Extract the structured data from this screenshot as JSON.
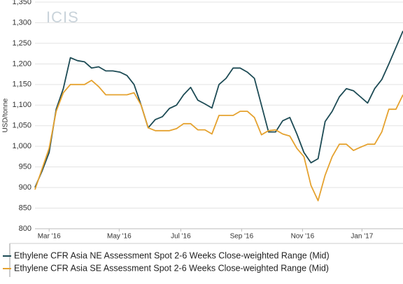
{
  "chart_data": {
    "type": "line",
    "watermark": "ICIS",
    "y_label": "USD/tonne",
    "x": [
      0,
      1,
      2,
      3,
      4,
      5,
      6,
      7,
      8,
      9,
      10,
      11,
      12,
      13,
      14,
      15,
      16,
      17,
      18,
      19,
      20,
      21,
      22,
      23,
      24,
      25,
      26,
      27,
      28,
      29,
      30,
      31,
      32,
      33,
      34,
      35,
      36,
      37,
      38,
      39,
      40,
      41,
      42,
      43,
      44,
      45,
      46,
      47,
      48,
      49,
      50,
      51,
      52
    ],
    "xlim": [
      0,
      52
    ],
    "xticks": [
      {
        "value": 2,
        "label": "Mar '16"
      },
      {
        "value": 11.9,
        "label": "May '16"
      },
      {
        "value": 20.6,
        "label": "Jul '16"
      },
      {
        "value": 29.2,
        "label": "Sep '16"
      },
      {
        "value": 37.8,
        "label": "Nov '16"
      },
      {
        "value": 46.2,
        "label": "Jan '17"
      }
    ],
    "ylim": [
      800,
      1350
    ],
    "yticks": [
      800,
      850,
      900,
      950,
      {
        "value": 1000,
        "label": "1,000"
      },
      {
        "value": 1050,
        "label": "1,050"
      },
      {
        "value": 1100,
        "label": "1,100"
      },
      {
        "value": 1150,
        "label": "1,150"
      },
      {
        "value": 1200,
        "label": "1,200"
      },
      {
        "value": 1250,
        "label": "1,250"
      },
      {
        "value": 1300,
        "label": "1,300"
      },
      {
        "value": 1350,
        "label": "1,350"
      }
    ],
    "grid": true,
    "legend": "bottom",
    "series": [
      {
        "name": "Ethylene CFR Asia NE Assessment Spot 2-6 Weeks Close-weighted Range (Mid)",
        "color": "#1d4b55",
        "values": [
          900,
          940,
          985,
          1090,
          1140,
          1215,
          1208,
          1205,
          1190,
          1193,
          1183,
          1183,
          1180,
          1172,
          1150,
          1100,
          1045,
          1065,
          1072,
          1092,
          1100,
          1125,
          1143,
          1112,
          1103,
          1093,
          1150,
          1165,
          1190,
          1190,
          1180,
          1165,
          1100,
          1035,
          1035,
          1062,
          1070,
          1030,
          985,
          960,
          970,
          1060,
          1085,
          1120,
          1140,
          1135,
          1120,
          1105,
          1140,
          1162,
          1200,
          1240,
          1280
        ]
      },
      {
        "name": "Ethylene CFR Asia SE Assessment Spot 2-6 Weeks Close-weighted Range (Mid)",
        "color": "#e5a22f",
        "values": [
          895,
          945,
          995,
          1085,
          1130,
          1150,
          1150,
          1150,
          1160,
          1145,
          1125,
          1125,
          1125,
          1125,
          1130,
          1100,
          1045,
          1038,
          1038,
          1038,
          1043,
          1055,
          1055,
          1040,
          1040,
          1030,
          1075,
          1075,
          1075,
          1085,
          1085,
          1070,
          1028,
          1038,
          1040,
          1030,
          1025,
          995,
          975,
          905,
          868,
          930,
          975,
          1005,
          1005,
          990,
          998,
          1005,
          1005,
          1035,
          1090,
          1090,
          1125
        ]
      }
    ]
  }
}
